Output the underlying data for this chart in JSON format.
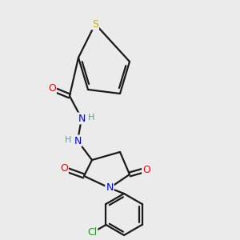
{
  "bg_color": "#ebebeb",
  "atom_colors": {
    "S": "#c8b400",
    "O": "#ff0000",
    "N": "#0000ff",
    "Cl": "#00aa00",
    "C": "#000000",
    "H": "#5f9ea0"
  },
  "bond_color": "#1a1a1a",
  "bond_lw": 1.6,
  "figsize": [
    3.0,
    3.0
  ],
  "dpi": 100
}
